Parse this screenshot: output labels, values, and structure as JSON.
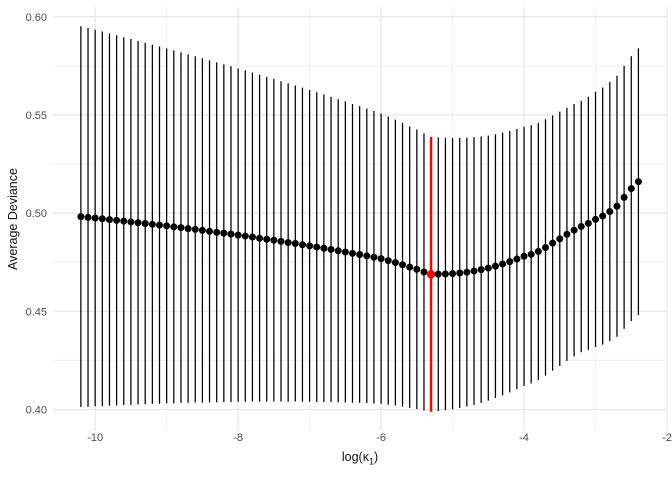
{
  "chart_data": {
    "type": "scatter",
    "title": "",
    "subtitle": "",
    "ylabel": "Average Deviance",
    "xlabel_pre": "log(κ",
    "xlabel_sub": "1",
    "xlabel_post": ")",
    "legend": "none",
    "grid": "on",
    "xlim": [
      -10.59,
      -2.0
    ],
    "ylim": [
      0.389,
      0.605
    ],
    "x_ticks": [
      {
        "value": -10,
        "label": "-10"
      },
      {
        "value": -8,
        "label": "-8"
      },
      {
        "value": -6,
        "label": "-6"
      },
      {
        "value": -4,
        "label": "-4"
      },
      {
        "value": -2,
        "label": "-2"
      }
    ],
    "y_ticks": [
      {
        "value": 0.6,
        "label": "0.60"
      },
      {
        "value": 0.55,
        "label": "0.55"
      },
      {
        "value": 0.5,
        "label": "0.50"
      },
      {
        "value": 0.45,
        "label": "0.45"
      },
      {
        "value": 0.4,
        "label": "0.40"
      }
    ],
    "x_minor_ticks": [
      -9,
      -7,
      -5,
      -3
    ],
    "y_minor_ticks": [
      0.425,
      0.475,
      0.525,
      0.575
    ],
    "series_description": "Mean deviance points with vertical error bars (mean ± SD); red bar/point marks minimum",
    "highlight_x": -5.3,
    "columns": [
      "log_kappa1",
      "lower",
      "mean",
      "upper"
    ],
    "points": [
      [
        -10.2,
        0.4012,
        0.4982,
        0.5952
      ],
      [
        -10.1,
        0.4013,
        0.4978,
        0.5943
      ],
      [
        -10.0,
        0.4016,
        0.4975,
        0.5934
      ],
      [
        -9.9,
        0.4017,
        0.4971,
        0.5925
      ],
      [
        -9.8,
        0.4019,
        0.4967,
        0.5915
      ],
      [
        -9.7,
        0.402,
        0.4963,
        0.5906
      ],
      [
        -9.6,
        0.4022,
        0.4959,
        0.5896
      ],
      [
        -9.5,
        0.4023,
        0.4955,
        0.5887
      ],
      [
        -9.4,
        0.4025,
        0.4951,
        0.5877
      ],
      [
        -9.3,
        0.4026,
        0.4947,
        0.5868
      ],
      [
        -9.2,
        0.4028,
        0.4943,
        0.5858
      ],
      [
        -9.1,
        0.4029,
        0.4939,
        0.5849
      ],
      [
        -9.0,
        0.4031,
        0.4935,
        0.5839
      ],
      [
        -8.9,
        0.4031,
        0.493,
        0.5829
      ],
      [
        -8.8,
        0.4033,
        0.4926,
        0.5819
      ],
      [
        -8.7,
        0.4033,
        0.4921,
        0.5809
      ],
      [
        -8.6,
        0.4035,
        0.4917,
        0.5799
      ],
      [
        -8.5,
        0.4035,
        0.4912,
        0.5789
      ],
      [
        -8.4,
        0.4036,
        0.4907,
        0.5778
      ],
      [
        -8.3,
        0.4036,
        0.4902,
        0.5768
      ],
      [
        -8.2,
        0.4038,
        0.4898,
        0.5758
      ],
      [
        -8.1,
        0.4038,
        0.4893,
        0.5748
      ],
      [
        -8.0,
        0.4039,
        0.4888,
        0.5737
      ],
      [
        -7.9,
        0.4039,
        0.4883,
        0.5727
      ],
      [
        -7.8,
        0.404,
        0.4878,
        0.5716
      ],
      [
        -7.7,
        0.4039,
        0.4872,
        0.5705
      ],
      [
        -7.6,
        0.404,
        0.4867,
        0.5694
      ],
      [
        -7.5,
        0.404,
        0.4862,
        0.5684
      ],
      [
        -7.4,
        0.404,
        0.4856,
        0.5672
      ],
      [
        -7.3,
        0.4039,
        0.485,
        0.5661
      ],
      [
        -7.2,
        0.404,
        0.4845,
        0.565
      ],
      [
        -7.1,
        0.4039,
        0.4839,
        0.5639
      ],
      [
        -7.0,
        0.4039,
        0.4833,
        0.5627
      ],
      [
        -6.9,
        0.4038,
        0.4827,
        0.5616
      ],
      [
        -6.8,
        0.4038,
        0.4821,
        0.5604
      ],
      [
        -6.7,
        0.4037,
        0.4815,
        0.5593
      ],
      [
        -6.6,
        0.4036,
        0.4808,
        0.558
      ],
      [
        -6.5,
        0.4035,
        0.4802,
        0.5569
      ],
      [
        -6.4,
        0.4034,
        0.4795,
        0.5556
      ],
      [
        -6.3,
        0.4033,
        0.4789,
        0.5545
      ],
      [
        -6.2,
        0.4032,
        0.4782,
        0.5532
      ],
      [
        -6.1,
        0.403,
        0.4775,
        0.552
      ],
      [
        -6.0,
        0.4029,
        0.4768,
        0.5507
      ],
      [
        -5.9,
        0.4024,
        0.4758,
        0.5492
      ],
      [
        -5.8,
        0.402,
        0.4748,
        0.5476
      ],
      [
        -5.7,
        0.4014,
        0.4737,
        0.546
      ],
      [
        -5.6,
        0.4008,
        0.4725,
        0.5442
      ],
      [
        -5.5,
        0.4002,
        0.4714,
        0.5426
      ],
      [
        -5.4,
        0.3994,
        0.47,
        0.5406
      ],
      [
        -5.3,
        0.3988,
        0.4688,
        0.5388
      ],
      [
        -5.2,
        0.3992,
        0.4689,
        0.5386
      ],
      [
        -5.1,
        0.3996,
        0.469,
        0.5384
      ],
      [
        -5.0,
        0.4001,
        0.4692,
        0.5383
      ],
      [
        -4.9,
        0.4007,
        0.4695,
        0.5383
      ],
      [
        -4.8,
        0.4014,
        0.4699,
        0.5384
      ],
      [
        -4.7,
        0.4023,
        0.4705,
        0.5387
      ],
      [
        -4.6,
        0.4033,
        0.4712,
        0.5391
      ],
      [
        -4.5,
        0.4045,
        0.472,
        0.5395
      ],
      [
        -4.4,
        0.4058,
        0.473,
        0.5402
      ],
      [
        -4.3,
        0.4072,
        0.4741,
        0.541
      ],
      [
        -4.2,
        0.4087,
        0.4753,
        0.5419
      ],
      [
        -4.1,
        0.4103,
        0.4766,
        0.5429
      ],
      [
        -4.0,
        0.412,
        0.478,
        0.544
      ],
      [
        -3.9,
        0.4132,
        0.479,
        0.5448
      ],
      [
        -3.8,
        0.415,
        0.4805,
        0.546
      ],
      [
        -3.7,
        0.4172,
        0.4825,
        0.5478
      ],
      [
        -3.6,
        0.4197,
        0.4847,
        0.5497
      ],
      [
        -3.5,
        0.4221,
        0.4869,
        0.5517
      ],
      [
        -3.4,
        0.4247,
        0.4892,
        0.5537
      ],
      [
        -3.3,
        0.427,
        0.4913,
        0.5556
      ],
      [
        -3.2,
        0.4292,
        0.4932,
        0.5572
      ],
      [
        -3.1,
        0.4303,
        0.4948,
        0.5593
      ],
      [
        -3.0,
        0.4318,
        0.4968,
        0.5618
      ],
      [
        -2.9,
        0.433,
        0.4985,
        0.564
      ],
      [
        -2.8,
        0.4348,
        0.5008,
        0.5668
      ],
      [
        -2.7,
        0.437,
        0.5035,
        0.57
      ],
      [
        -2.6,
        0.441,
        0.508,
        0.575
      ],
      [
        -2.5,
        0.445,
        0.5125,
        0.58
      ],
      [
        -2.4,
        0.448,
        0.516,
        0.584
      ]
    ]
  },
  "colors": {
    "background": "#ffffff",
    "point": "#000000",
    "errorbar": "#000000",
    "highlight": "#ff0000",
    "grid_major": "#e5e5e5",
    "grid_minor": "#efefef",
    "tick_text": "#4d4d4d",
    "axis_title_text": "#111111"
  }
}
